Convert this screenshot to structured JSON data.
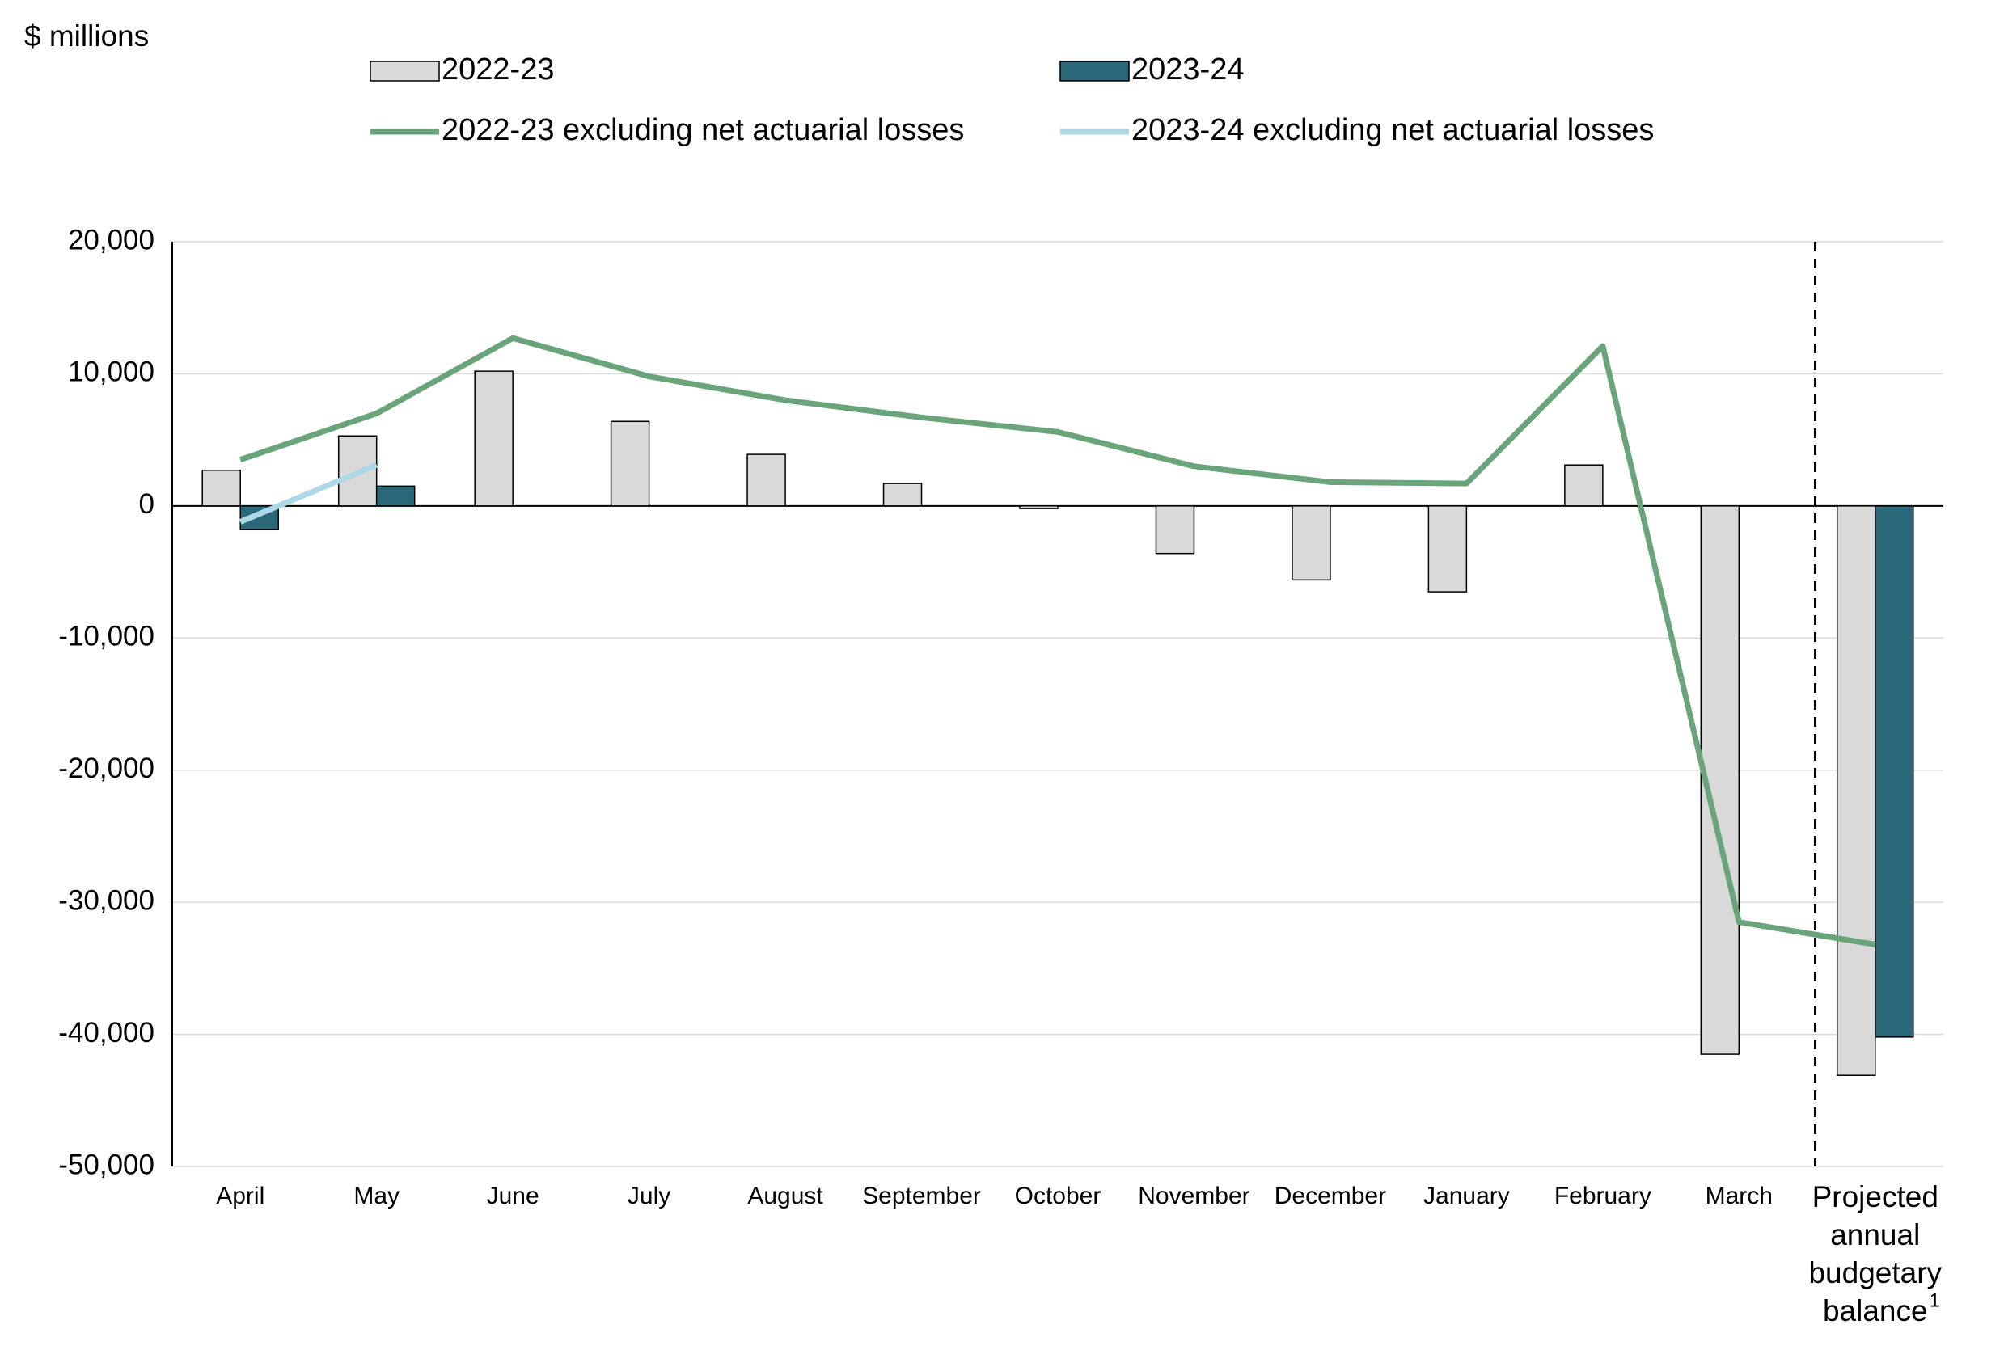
{
  "chart_data": {
    "type": "bar",
    "y_axis_label": "$ millions",
    "categories": [
      "April",
      "May",
      "June",
      "July",
      "August",
      "September",
      "October",
      "November",
      "December",
      "January",
      "February",
      "March",
      "Projected annual budgetary balance"
    ],
    "footnote_marker": "1",
    "series": [
      {
        "name": "2022-23",
        "type": "bar",
        "color": "#d9d9d9",
        "values": [
          2700,
          5300,
          10200,
          6400,
          3900,
          1700,
          -200,
          -3600,
          -5600,
          -6500,
          3100,
          -41500,
          -43100
        ]
      },
      {
        "name": "2023-24",
        "type": "bar",
        "color": "#2a6778",
        "values": [
          -1800,
          1500,
          null,
          null,
          null,
          null,
          null,
          null,
          null,
          null,
          null,
          null,
          -40200
        ]
      },
      {
        "name": "2022-23 excluding net actuarial losses",
        "type": "line",
        "color": "#6aa47a",
        "values": [
          3500,
          7000,
          12700,
          9800,
          8000,
          6700,
          5600,
          3000,
          1800,
          1700,
          12100,
          -31500,
          -33200
        ]
      },
      {
        "name": "2023-24 excluding net actuarial losses",
        "type": "line",
        "color": "#add8e6",
        "values": [
          -1200,
          3100,
          null,
          null,
          null,
          null,
          null,
          null,
          null,
          null,
          null,
          null,
          null
        ]
      }
    ],
    "ylim": [
      -50000,
      20000
    ],
    "yticks": [
      {
        "value": -50000,
        "label": "-50,000"
      },
      {
        "value": -40000,
        "label": "-40,000"
      },
      {
        "value": -30000,
        "label": "-30,000"
      },
      {
        "value": -20000,
        "label": "-20,000"
      },
      {
        "value": -10000,
        "label": "-10,000"
      },
      0,
      {
        "value": 10000,
        "label": "10,000"
      },
      {
        "value": 20000,
        "label": "20,000"
      }
    ],
    "grid": true
  }
}
